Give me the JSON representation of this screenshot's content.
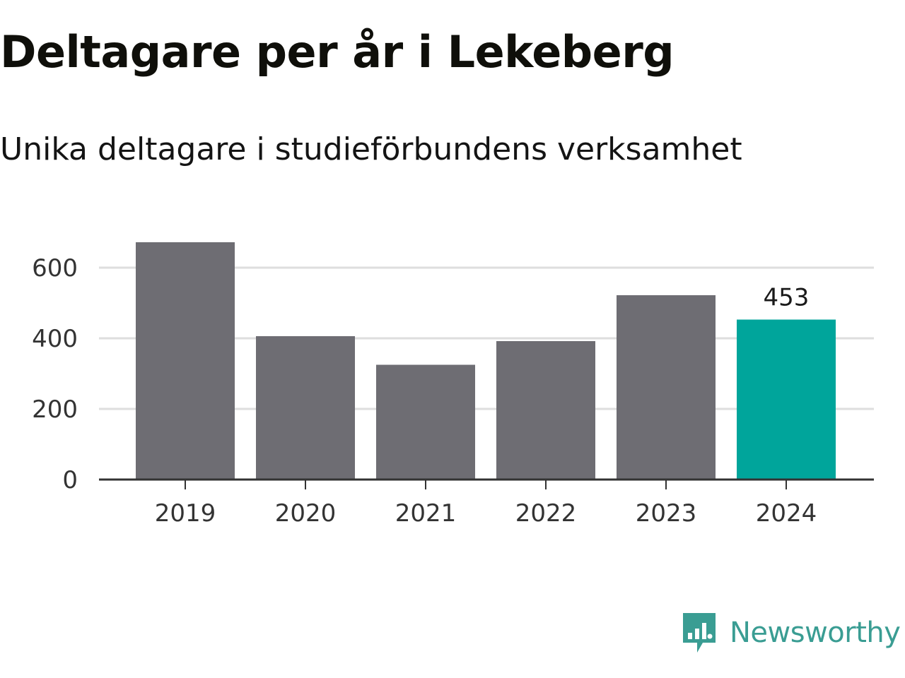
{
  "header": {
    "title": "Deltagare per år i Lekeberg",
    "subtitle": "Unika deltagare i studieförbundens verksamhet"
  },
  "colors": {
    "bar_default": "#6e6d73",
    "bar_highlight": "#00a59b",
    "gridline": "#dedede",
    "axis": "#333333",
    "brand": "#3a9d93"
  },
  "chart_data": {
    "type": "bar",
    "title": "Deltagare per år i Lekeberg",
    "subtitle": "Unika deltagare i studieförbundens verksamhet",
    "categories": [
      "2019",
      "2020",
      "2021",
      "2022",
      "2023",
      "2024"
    ],
    "values": [
      672,
      406,
      325,
      392,
      522,
      453
    ],
    "highlight_index": 5,
    "data_labels": [
      {
        "index": 5,
        "text": "453"
      }
    ],
    "ylim": [
      0,
      720
    ],
    "yticks": [
      0,
      200,
      400,
      600
    ],
    "ytick_labels": [
      "0",
      "200",
      "400",
      "600"
    ],
    "grid": true,
    "legend": false
  },
  "logo": {
    "icon": "newsworthy-logo-icon",
    "text": "Newsworthy"
  }
}
